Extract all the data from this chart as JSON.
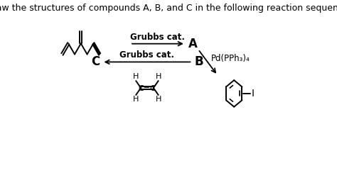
{
  "title": "Draw the structures of compounds A, B, and C in the following reaction sequence:",
  "title_fontsize": 9.0,
  "background_color": "#ffffff",
  "text_color": "#000000",
  "reagent1": "Grubbs cat.",
  "reagent2": "Pd(PPh₃)₄",
  "reagent3": "Grubbs cat.",
  "label_A": "A",
  "label_B": "B",
  "label_C": "C",
  "label_I": "I",
  "font_size_labels": 10,
  "font_size_reagents": 8.5,
  "arrow_color": "#000000",
  "line_color": "#000000",
  "bond_width": 1.4
}
